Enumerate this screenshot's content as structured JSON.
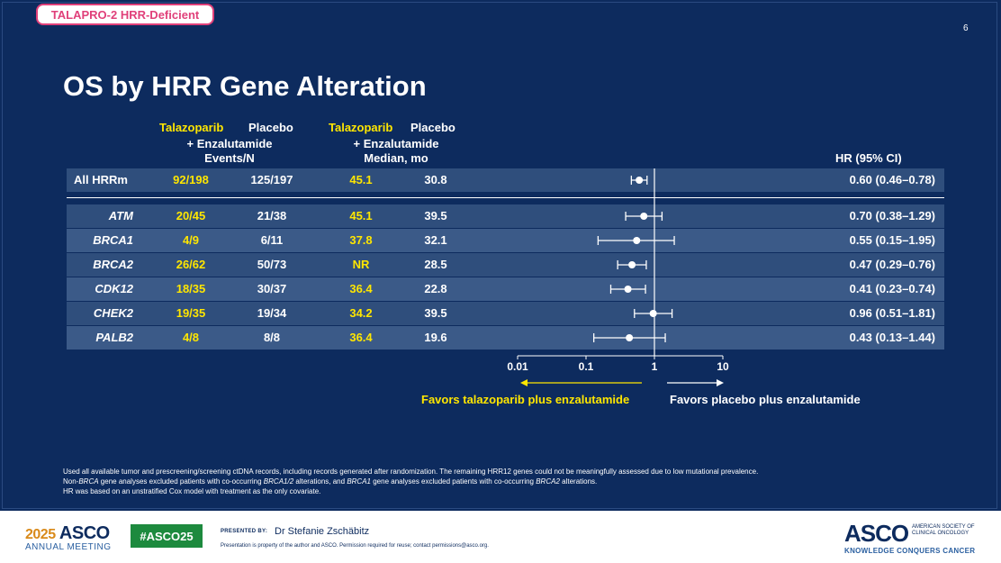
{
  "tag": "TALAPRO-2 HRR-Deficient",
  "slide_number": "6",
  "title": "OS by HRR Gene Alteration",
  "headers": {
    "events_tala_1": "Talazoparib",
    "events_placebo": "Placebo",
    "events_line2": "+ Enzalutamide",
    "events_line3": "Events/N",
    "median_tala_1": "Talazoparib",
    "median_placebo": "Placebo",
    "median_line2": "+ Enzalutamide",
    "median_line3": "Median, mo",
    "hr": "HR (95% CI)"
  },
  "colors": {
    "background": "#0d2b5e",
    "highlight": "#ffe600",
    "row_dark": "#2f4e7c",
    "row_light": "#3b5a88",
    "tag": "#e0407a",
    "hashtag": "#1d8a3e"
  },
  "chart_data": {
    "type": "forest",
    "x_scale": "log",
    "xlim": [
      0.01,
      10
    ],
    "x_ticks": [
      "0.01",
      "0.1",
      "1",
      "10"
    ],
    "reference_line": 1,
    "favors_left": "Favors talazoparib plus enzalutamide",
    "favors_right": "Favors placebo plus enzalutamide",
    "rows": [
      {
        "label": "All HRRm",
        "tala_events": "92/198",
        "placebo_events": "125/197",
        "tala_median": "45.1",
        "placebo_median": "30.8",
        "hr": 0.6,
        "lo": 0.46,
        "hi": 0.78,
        "hr_text": "0.60 (0.46–0.78)"
      },
      {
        "label": "ATM",
        "tala_events": "20/45",
        "placebo_events": "21/38",
        "tala_median": "45.1",
        "placebo_median": "39.5",
        "hr": 0.7,
        "lo": 0.38,
        "hi": 1.29,
        "hr_text": "0.70 (0.38–1.29)"
      },
      {
        "label": "BRCA1",
        "tala_events": "4/9",
        "placebo_events": "6/11",
        "tala_median": "37.8",
        "placebo_median": "32.1",
        "hr": 0.55,
        "lo": 0.15,
        "hi": 1.95,
        "hr_text": "0.55 (0.15–1.95)"
      },
      {
        "label": "BRCA2",
        "tala_events": "26/62",
        "placebo_events": "50/73",
        "tala_median": "NR",
        "placebo_median": "28.5",
        "hr": 0.47,
        "lo": 0.29,
        "hi": 0.76,
        "hr_text": "0.47 (0.29–0.76)"
      },
      {
        "label": "CDK12",
        "tala_events": "18/35",
        "placebo_events": "30/37",
        "tala_median": "36.4",
        "placebo_median": "22.8",
        "hr": 0.41,
        "lo": 0.23,
        "hi": 0.74,
        "hr_text": "0.41 (0.23–0.74)"
      },
      {
        "label": "CHEK2",
        "tala_events": "19/35",
        "placebo_events": "19/34",
        "tala_median": "34.2",
        "placebo_median": "39.5",
        "hr": 0.96,
        "lo": 0.51,
        "hi": 1.81,
        "hr_text": "0.96 (0.51–1.81)"
      },
      {
        "label": "PALB2",
        "tala_events": "4/8",
        "placebo_events": "8/8",
        "tala_median": "36.4",
        "placebo_median": "19.6",
        "hr": 0.43,
        "lo": 0.13,
        "hi": 1.44,
        "hr_text": "0.43 (0.13–1.44)"
      }
    ]
  },
  "footnotes": {
    "line1": "Used all available tumor and prescreening/screening ctDNA records, including records generated after randomization. The remaining HRR12 genes could not be meaningfully assessed due to low mutational prevalence.",
    "line2_a": "Non-",
    "line2_b": "BRCA",
    "line2_c": " gene analyses excluded patients with co-occurring ",
    "line2_d": "BRCA1/2",
    "line2_e": " alterations, and ",
    "line2_f": "BRCA1",
    "line2_g": " gene analyses excluded patients with co-occurring ",
    "line2_h": "BRCA2",
    "line2_i": " alterations.",
    "line3": "HR was based on an unstratified Cox model with treatment as the only covariate."
  },
  "footer": {
    "year": "2025",
    "asco": "ASCO",
    "annual_meeting": "ANNUAL MEETING",
    "hashtag": "#ASCO25",
    "presented_by": "PRESENTED BY:",
    "presenter": "Dr Stefanie Zschäbitz",
    "notice": "Presentation is property of the author and ASCO. Permission required for reuse; contact permissions@asco.org.",
    "logo": "ASCO",
    "society_1": "AMERICAN SOCIETY OF",
    "society_2": "CLINICAL ONCOLOGY",
    "tagline": "KNOWLEDGE CONQUERS CANCER"
  }
}
